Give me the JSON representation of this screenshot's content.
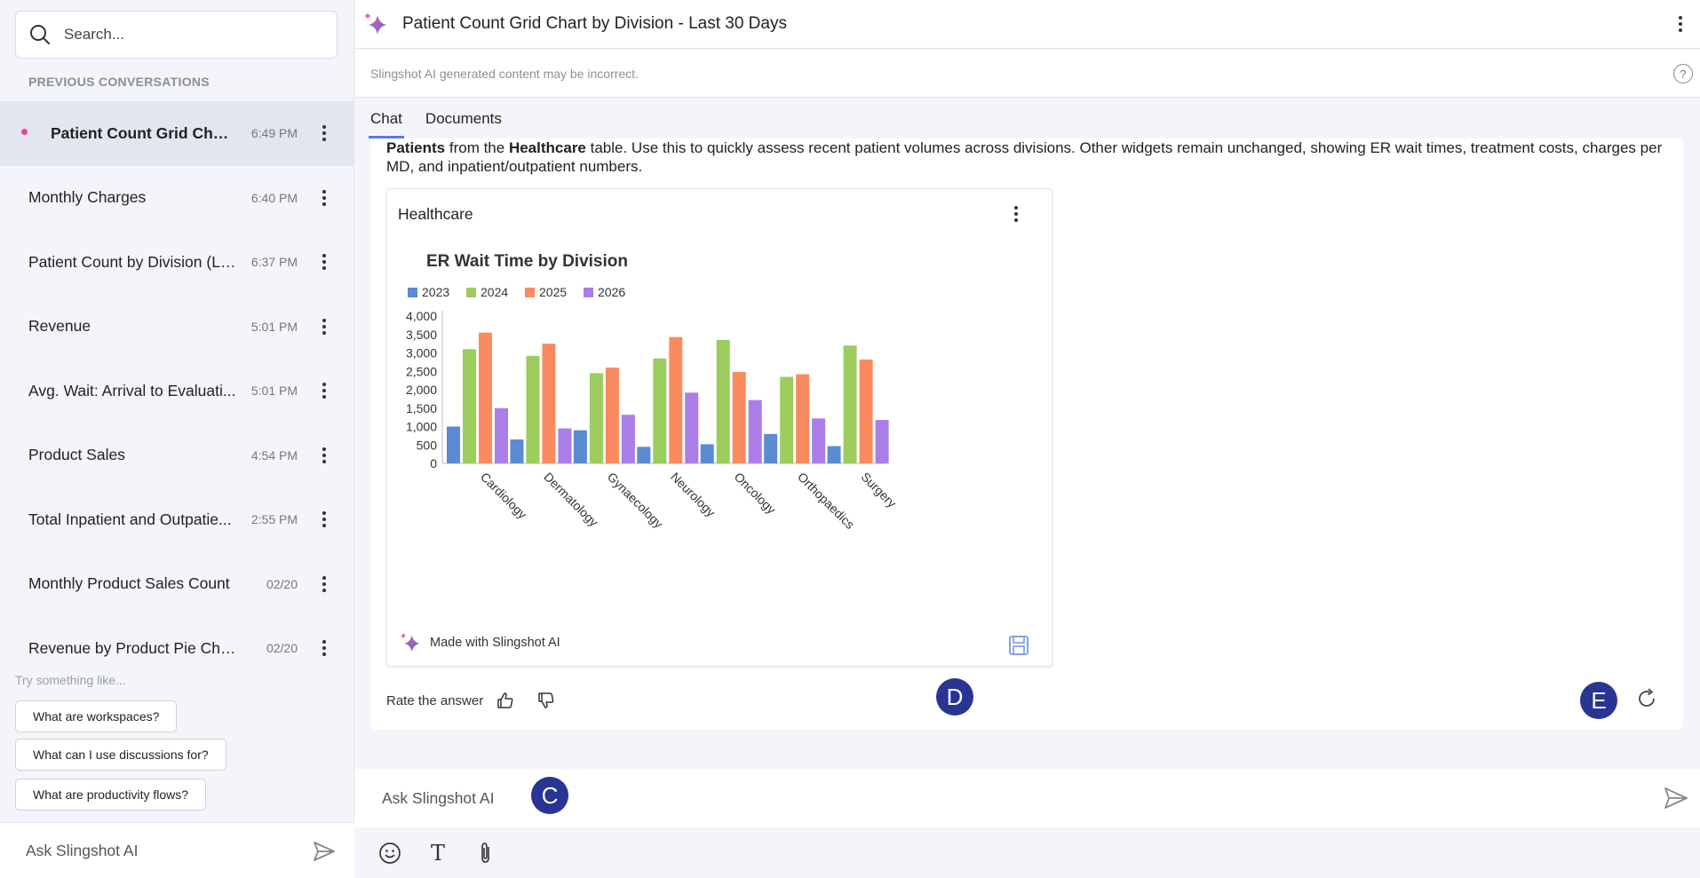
{
  "sidebar": {
    "search_placeholder": "Search...",
    "previous_label": "PREVIOUS CONVERSATIONS",
    "conversations": [
      {
        "title": "Patient Count Grid Chart...",
        "time": "6:49 PM"
      },
      {
        "title": "Monthly Charges",
        "time": "6:40 PM"
      },
      {
        "title": "Patient Count by Division (La...",
        "time": "6:37 PM"
      },
      {
        "title": "Revenue",
        "time": "5:01 PM"
      },
      {
        "title": "Avg. Wait: Arrival to Evaluati...",
        "time": "5:01 PM"
      },
      {
        "title": "Product Sales",
        "time": "4:54 PM"
      },
      {
        "title": "Total Inpatient and Outpatie...",
        "time": "2:55 PM"
      },
      {
        "title": "Monthly Product Sales Count",
        "time": "02/20"
      },
      {
        "title": "Revenue by Product Pie Chart...",
        "time": "02/20"
      }
    ],
    "try_label": "Try something like...",
    "suggestions": [
      "What are workspaces?",
      "What can I use discussions for?",
      "What are productivity flows?"
    ],
    "ask_placeholder": "Ask Slingshot AI"
  },
  "header": {
    "title": "Patient Count Grid Chart by Division - Last 30 Days",
    "disclaimer": "Slingshot AI generated content may be incorrect.",
    "help": "?"
  },
  "tabs": [
    "Chat",
    "Documents"
  ],
  "message": {
    "b1": "Patients",
    "t1": " from the ",
    "b2": "Healthcare",
    "t2": " table. Use this to quickly assess recent patient volumes across divisions. Other widgets remain unchanged, showing ER wait times, treatment costs, charges per MD, and inpatient/outpatient numbers."
  },
  "card": {
    "title": "Healthcare",
    "footer": "Made with Slingshot AI"
  },
  "rate_label": "Rate the answer",
  "markers": {
    "c": "C",
    "d": "D",
    "e": "E"
  },
  "composer": {
    "placeholder": "Ask Slingshot AI",
    "text_tool": "T"
  },
  "colors": {
    "2023": "#5b8bd0",
    "2024": "#9ccc5e",
    "2025": "#fa8a5f",
    "2026": "#aa7ee6",
    "accent": "#5c7cdb"
  },
  "chart_data": {
    "type": "bar",
    "title": "ER Wait Time by Division",
    "categories": [
      "Cardiology",
      "Dermatology",
      "Gynaecology",
      "Neurology",
      "Oncology",
      "Orthopaedics",
      "Surgery"
    ],
    "series": [
      {
        "name": "2023",
        "values": [
          1000,
          650,
          900,
          450,
          520,
          800,
          470
        ]
      },
      {
        "name": "2024",
        "values": [
          3100,
          2920,
          2450,
          2850,
          3350,
          2350,
          3200
        ]
      },
      {
        "name": "2025",
        "values": [
          3550,
          3250,
          2600,
          3430,
          2480,
          2420,
          2820
        ]
      },
      {
        "name": "2026",
        "values": [
          1500,
          950,
          1320,
          1920,
          1720,
          1220,
          1180
        ]
      }
    ],
    "ylim": [
      0,
      4000
    ],
    "yticks": [
      "0",
      "500",
      "1,000",
      "1,500",
      "2,000",
      "2,500",
      "3,000",
      "3,500",
      "4,000"
    ],
    "legend": "top-left"
  }
}
